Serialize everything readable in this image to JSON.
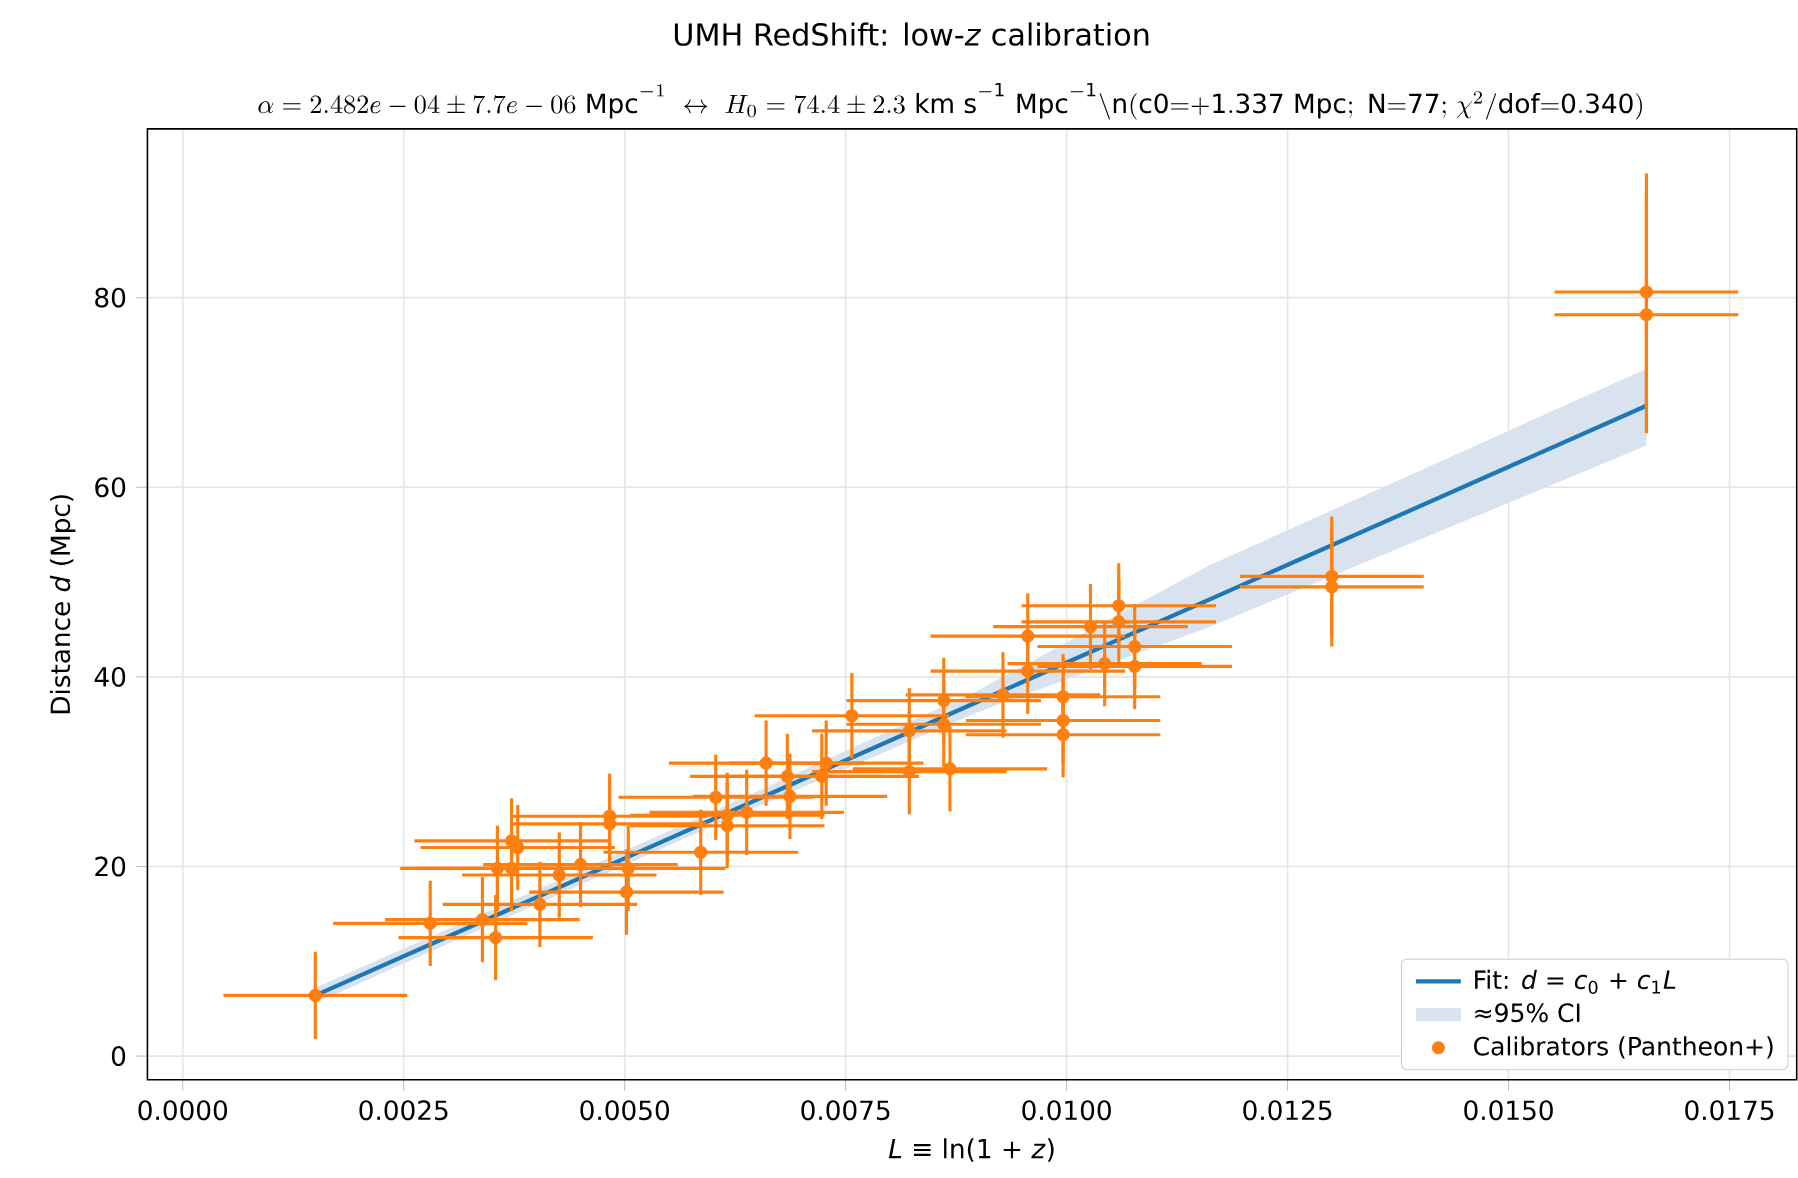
{
  "chart_data": {
    "type": "scatter",
    "title": "UMH RedShift: low-*z* calibration",
    "subtitle": "\\alpha=2.482e-04\\pm7.7e-06\\ \\mathrm{Mpc}^{-1}\\ \\leftrightarrow\\ H_0=74.4\\pm2.3\\ \\mathrm{km\\ s^{-1}\\ Mpc^{-1}}\\mathrm{\\backslash n(c0{=}{+}1.337\\ Mpc;\\ N{=}77;\\ }\\chi^2\\mathrm{/dof{=}0.340)}",
    "xlabel": "*L* ≡ ln(1 + *z*)",
    "ylabel": "Distance *d* (Mpc)",
    "xlim": [
      -0.0004,
      0.01826
    ],
    "ylim": [
      -2.5,
      97.8
    ],
    "xticks": [
      {
        "value": 0,
        "label": "0.0000"
      },
      {
        "value": 0.0025,
        "label": "0.0025"
      },
      {
        "value": 0.005,
        "label": "0.0050"
      },
      {
        "value": 0.0075,
        "label": "0.0075"
      },
      {
        "value": 0.01,
        "label": "0.0100"
      },
      {
        "value": 0.0125,
        "label": "0.0125"
      },
      {
        "value": 0.015,
        "label": "0.0150"
      },
      {
        "value": 0.0175,
        "label": "0.0175"
      }
    ],
    "yticks": [
      0,
      20,
      40,
      60,
      80
    ],
    "annotations": [
      "≈95% CI"
    ],
    "grid": true,
    "legend": "bottom right",
    "series": [
      {
        "name": "Fit: *d* = *c*$_{0}$ + *c*$_{1}$*L*",
        "type": "line",
        "marker": "none",
        "color": "#1f77b4",
        "x": [
          0.0015,
          0.006,
          0.009,
          0.0116,
          0.01656
        ],
        "values": [
          6.4,
          25.0,
          37.4,
          48.1,
          68.6
        ],
        "lower": [
          5.6,
          24.3,
          36.3,
          45.2,
          64.4
        ],
        "upper": [
          7.2,
          25.8,
          38.6,
          51.7,
          72.5
        ]
      },
      {
        "name": "Calibrators (Pantheon+)",
        "marker": "circle",
        "color": "#ff7f0e",
        "x": [
          0.0015,
          0.0028,
          0.00339,
          0.00354,
          0.00356,
          0.00372,
          0.00379,
          0.00372,
          0.00404,
          0.00426,
          0.0045,
          0.00483,
          0.00483,
          0.00502,
          0.00504,
          0.00586,
          0.00603,
          0.00616,
          0.00616,
          0.00638,
          0.0066,
          0.00684,
          0.00687,
          0.00723,
          0.00728,
          0.00757,
          0.00822,
          0.00822,
          0.00861,
          0.00861,
          0.00868,
          0.00928,
          0.00956,
          0.00956,
          0.00996,
          0.00996,
          0.00996,
          0.01027,
          0.01043,
          0.01059,
          0.01059,
          0.01077,
          0.01077,
          0.013,
          0.013,
          0.01656,
          0.01656
        ],
        "values": [
          6.4,
          14.0,
          14.4,
          12.5,
          19.8,
          22.7,
          22.0,
          19.8,
          16.0,
          19.1,
          20.2,
          25.3,
          24.5,
          17.3,
          19.8,
          21.5,
          27.3,
          25.4,
          24.3,
          25.7,
          30.9,
          29.5,
          27.4,
          29.5,
          30.9,
          35.9,
          34.3,
          30.0,
          37.5,
          35.0,
          30.3,
          38.1,
          44.3,
          40.6,
          37.9,
          35.4,
          33.9,
          45.3,
          41.4,
          47.5,
          45.8,
          43.2,
          41.1,
          50.6,
          49.5,
          80.6,
          78.2
        ],
        "errors": [
          4.6,
          4.5,
          4.5,
          4.5,
          4.5,
          4.5,
          4.5,
          4.5,
          4.5,
          4.5,
          4.5,
          4.5,
          4.5,
          4.5,
          4.5,
          4.5,
          4.5,
          4.5,
          4.5,
          4.5,
          4.5,
          4.5,
          4.5,
          4.5,
          4.5,
          4.5,
          4.5,
          4.5,
          4.5,
          4.5,
          4.5,
          4.5,
          4.5,
          4.5,
          4.5,
          4.5,
          4.5,
          4.5,
          4.5,
          4.5,
          4.5,
          4.5,
          4.5,
          6.3,
          6.3,
          12.5,
          12.5
        ],
        "xerrors": [
          0.00104,
          0.0011,
          0.0011,
          0.0011,
          0.0011,
          0.0011,
          0.0011,
          0.0011,
          0.0011,
          0.0011,
          0.0011,
          0.0011,
          0.0011,
          0.0011,
          0.0011,
          0.0011,
          0.0011,
          0.0011,
          0.0011,
          0.0011,
          0.0011,
          0.0011,
          0.0011,
          0.0011,
          0.0011,
          0.0011,
          0.0011,
          0.0011,
          0.0011,
          0.0011,
          0.0011,
          0.0011,
          0.0011,
          0.0011,
          0.0011,
          0.0011,
          0.0011,
          0.0011,
          0.0011,
          0.0011,
          0.0011,
          0.0011,
          0.0011,
          0.00104,
          0.00104,
          0.00104,
          0.00104
        ]
      }
    ]
  }
}
